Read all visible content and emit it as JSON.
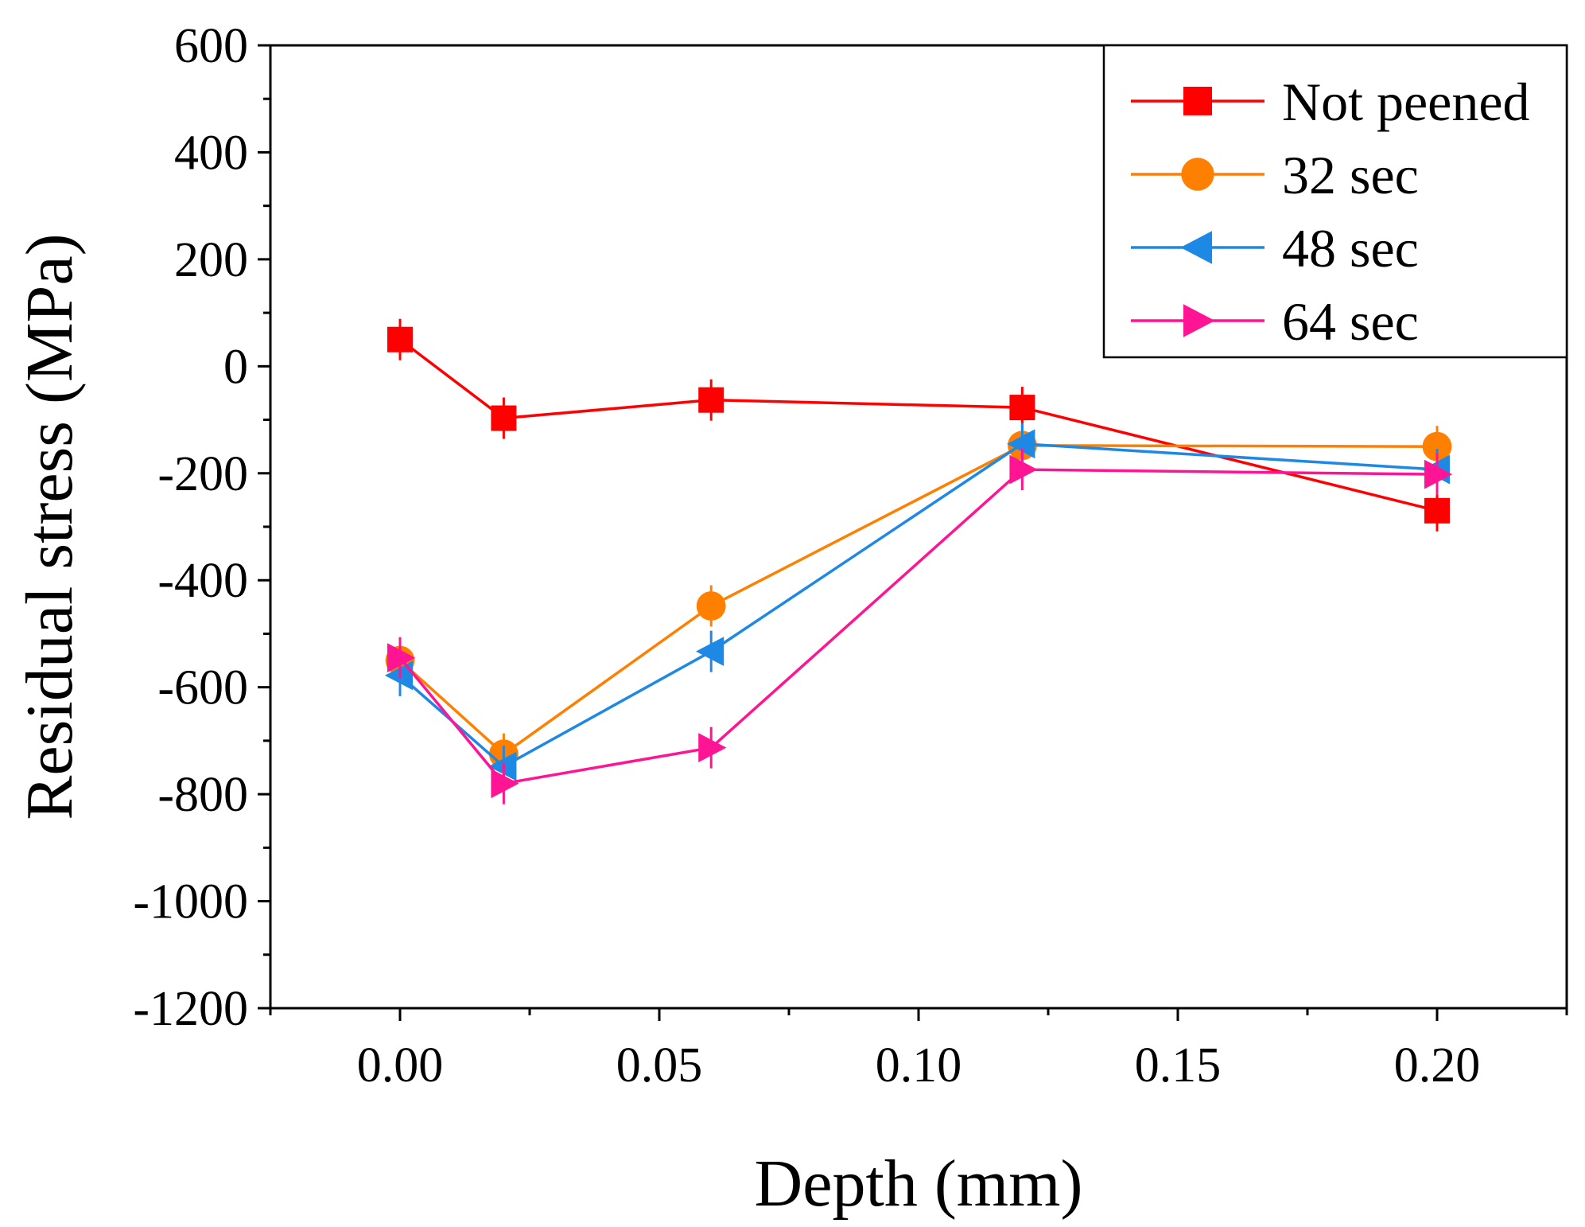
{
  "chart_data": {
    "type": "line",
    "title": "",
    "xlabel": "Depth (mm)",
    "ylabel": "Residual stress (MPa)",
    "xlim": [
      -0.025,
      0.225
    ],
    "ylim": [
      -1200,
      600
    ],
    "xticks": [
      0.0,
      0.05,
      0.1,
      0.15,
      0.2
    ],
    "xtick_labels": [
      "0.00",
      "0.05",
      "0.10",
      "0.15",
      "0.20"
    ],
    "yticks": [
      600,
      400,
      200,
      0,
      -200,
      -400,
      -600,
      -800,
      -1000,
      -1200
    ],
    "ytick_labels": [
      "600",
      "400",
      "200",
      "0",
      "-200",
      "-400",
      "-600",
      "-800",
      "-1000",
      "-1200"
    ],
    "grid": false,
    "legend_position": "top-right",
    "series": [
      {
        "name": "Not peened",
        "color": "#ff0000",
        "marker": "square",
        "x": [
          0.0,
          0.02,
          0.06,
          0.12,
          0.2
        ],
        "values": [
          50,
          -97,
          -63,
          -77,
          -270
        ]
      },
      {
        "name": "32 sec",
        "color": "#ff8000",
        "marker": "circle",
        "x": [
          0.0,
          0.02,
          0.06,
          0.12,
          0.2
        ],
        "values": [
          -550,
          -725,
          -448,
          -148,
          -150
        ]
      },
      {
        "name": "48 sec",
        "color": "#1e88e5",
        "marker": "triangle-left",
        "x": [
          0.0,
          0.02,
          0.06,
          0.12,
          0.2
        ],
        "values": [
          -578,
          -748,
          -533,
          -145,
          -193
        ]
      },
      {
        "name": "64 sec",
        "color": "#ff1493",
        "marker": "triangle-right",
        "x": [
          0.0,
          0.02,
          0.06,
          0.12,
          0.2
        ],
        "values": [
          -545,
          -780,
          -713,
          -193,
          -202
        ]
      }
    ]
  }
}
